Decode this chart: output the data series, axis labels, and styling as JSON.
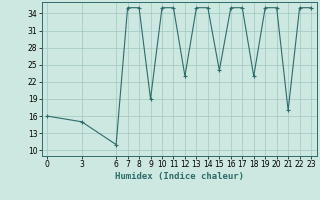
{
  "x": [
    0,
    3,
    6,
    7,
    8,
    9,
    10,
    11,
    12,
    13,
    14,
    15,
    16,
    17,
    18,
    19,
    20,
    21,
    22,
    23
  ],
  "y": [
    16,
    15,
    11,
    35,
    35,
    19,
    35,
    35,
    23,
    35,
    35,
    24,
    35,
    35,
    23,
    35,
    35,
    17,
    35,
    35
  ],
  "line_color": "#2e6b6b",
  "marker": "+",
  "marker_size": 3,
  "bg_color": "#cce8e0",
  "grid_color": "#a0c8be",
  "xlabel": "Humidex (Indice chaleur)",
  "xlabel_fontsize": 6.5,
  "xticks": [
    0,
    3,
    6,
    7,
    8,
    9,
    10,
    11,
    12,
    13,
    14,
    15,
    16,
    17,
    18,
    19,
    20,
    21,
    22,
    23
  ],
  "yticks": [
    10,
    13,
    16,
    19,
    22,
    25,
    28,
    31,
    34
  ],
  "ylim": [
    9,
    36
  ],
  "xlim": [
    -0.5,
    23.5
  ],
  "tick_fontsize": 5.5,
  "lw": 0.8
}
